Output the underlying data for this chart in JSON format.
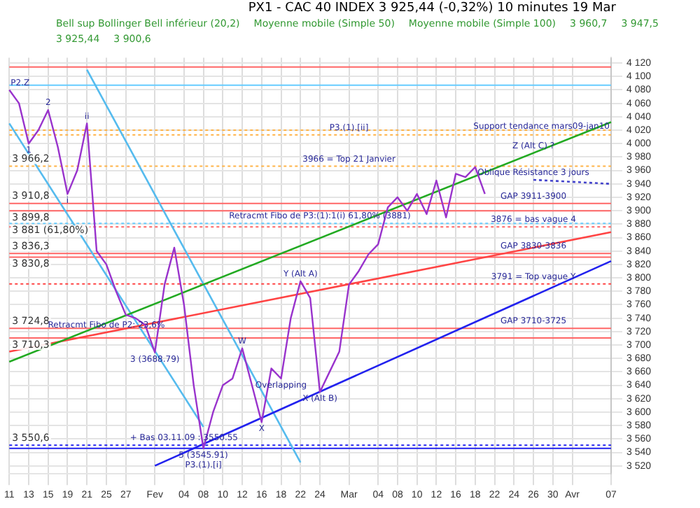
{
  "chart_data": {
    "type": "line",
    "title": "PX1 - CAC 40 INDEX  3 925,44 (-0,32%)  10 minutes  19 Mar",
    "categories": [
      "11",
      null,
      "13",
      null,
      "15",
      null,
      "19",
      null,
      "21",
      null,
      "25",
      null,
      "27",
      null,
      null,
      "Fev",
      null,
      null,
      "04",
      null,
      "08",
      null,
      "10",
      null,
      "12",
      null,
      "16",
      null,
      "18",
      null,
      "22",
      null,
      "24",
      null,
      null,
      "Mar",
      null,
      null,
      "04",
      null,
      "08",
      null,
      "10",
      null,
      "12",
      null,
      "16",
      null,
      "18",
      null,
      "22",
      null,
      "24",
      null,
      "26",
      null,
      "30",
      null,
      "Avr",
      null,
      null,
      null,
      "07"
    ],
    "series": [
      {
        "color": "#9933cc",
        "values": [
          4080,
          4060,
          4000,
          4020,
          4050,
          3995,
          3925,
          3960,
          4030,
          3840,
          3820,
          3780,
          3745,
          3740,
          3730,
          3689,
          3790,
          3845,
          3760,
          3640,
          3546,
          3600,
          3640,
          3650,
          3695,
          3640,
          3585,
          3665,
          3650,
          3740,
          3795,
          3770,
          3630,
          3660,
          3690,
          3790,
          3810,
          3835,
          3850,
          3905,
          3920,
          3900,
          3925,
          3895,
          3945,
          3890,
          3955,
          3950,
          3965,
          3925,
          null,
          null,
          null,
          null,
          null,
          null,
          null,
          null,
          null,
          null,
          null,
          null,
          null
        ]
      },
      {
        "type": "line",
        "color": "#22aa22",
        "x": [
          "11",
          "07"
        ],
        "values": [
          3675,
          4032
        ]
      },
      {
        "type": "line",
        "color": "#ff4444",
        "x": [
          "11",
          "07"
        ],
        "values": [
          3690,
          3868
        ]
      },
      {
        "type": "line",
        "color": "#2222ee",
        "x": [
          "Fev",
          "07"
        ],
        "values": [
          3520,
          3825
        ]
      },
      {
        "type": "line",
        "color": "#55bbee",
        "x": [
          "11",
          "08"
        ],
        "values": [
          4030,
          3578
        ]
      },
      {
        "type": "line",
        "color": "#55bbee",
        "x": [
          "21",
          "22"
        ],
        "values": [
          4110,
          3525
        ]
      },
      {
        "type": "line",
        "color": "#4444cc",
        "line_style": "dotted",
        "x": [
          "26",
          "07"
        ],
        "values": [
          3946,
          3940
        ]
      }
    ],
    "ylim": [
      3508,
      4128
    ],
    "yticks": [
      {
        "value": 3520,
        "label": "3 520"
      },
      {
        "value": 3540,
        "label": "3 540"
      },
      {
        "value": 3560,
        "label": "3 560"
      },
      {
        "value": 3580,
        "label": "3 580"
      },
      {
        "value": 3600,
        "label": "3 600"
      },
      {
        "value": 3620,
        "label": "3 620"
      },
      {
        "value": 3640,
        "label": "3 640"
      },
      {
        "value": 3660,
        "label": "3 660"
      },
      {
        "value": 3680,
        "label": "3 680"
      },
      {
        "value": 3700,
        "label": "3 700"
      },
      {
        "value": 3720,
        "label": "3 720"
      },
      {
        "value": 3740,
        "label": "3 740"
      },
      {
        "value": 3760,
        "label": "3 760"
      },
      {
        "value": 3780,
        "label": "3 780"
      },
      {
        "value": 3800,
        "label": "3 800"
      },
      {
        "value": 3820,
        "label": "3 820"
      },
      {
        "value": 3840,
        "label": "3 840"
      },
      {
        "value": 3860,
        "label": "3 860"
      },
      {
        "value": 3880,
        "label": "3 880"
      },
      {
        "value": 3900,
        "label": "3 900"
      },
      {
        "value": 3920,
        "label": "3 920"
      },
      {
        "value": 3940,
        "label": "3 940"
      },
      {
        "value": 3960,
        "label": "3 960"
      },
      {
        "value": 3980,
        "label": "3 980"
      },
      {
        "value": 4000,
        "label": "4 000"
      },
      {
        "value": 4020,
        "label": "4 020"
      },
      {
        "value": 4040,
        "label": "4 040"
      },
      {
        "value": 4060,
        "label": "4 060"
      },
      {
        "value": 4080,
        "label": "4 080"
      },
      {
        "value": 4100,
        "label": "4 100"
      },
      {
        "value": 4120,
        "label": "4 120"
      }
    ],
    "grid": true,
    "marker": "none",
    "ref_lines": [
      {
        "axis": "y",
        "value": 4114,
        "color": "#ff6666",
        "line_style": "solid"
      },
      {
        "axis": "y",
        "value": 4087,
        "color": "#66ccff",
        "line_style": "solid"
      },
      {
        "axis": "y",
        "value": 4020,
        "color": "#ffb347",
        "line_style": "dotted"
      },
      {
        "axis": "y",
        "value": 4013,
        "color": "#ffb347",
        "line_style": "dotted"
      },
      {
        "axis": "y",
        "value": 3966.2,
        "label": "3 966,2",
        "color": "#ffb347",
        "line_style": "dotted"
      },
      {
        "axis": "y",
        "value": 3910.8,
        "label": "3 910,8",
        "color": "#ff6666",
        "line_style": "solid"
      },
      {
        "axis": "y",
        "value": 3899.8,
        "label": "3 899,8",
        "color": "#ff6666",
        "line_style": "solid"
      },
      {
        "axis": "y",
        "value": 3881,
        "label": "3 881 (61,80%)",
        "color": "#66ccff",
        "line_style": "dotted"
      },
      {
        "axis": "y",
        "value": 3876,
        "color": "#ff6666",
        "line_style": "dotted"
      },
      {
        "axis": "y",
        "value": 3836.3,
        "label": "3 836,3",
        "color": "#ff6666",
        "line_style": "solid"
      },
      {
        "axis": "y",
        "value": 3830.8,
        "label": "3 830,8",
        "color": "#ff6666",
        "line_style": "solid"
      },
      {
        "axis": "y",
        "value": 3791,
        "color": "#ff4444",
        "line_style": "dotted"
      },
      {
        "axis": "y",
        "value": 3724.8,
        "label": "3 724,8",
        "color": "#ff6666",
        "line_style": "solid"
      },
      {
        "axis": "y",
        "value": 3710.3,
        "label": "3 710,3",
        "color": "#ff6666",
        "line_style": "solid"
      },
      {
        "axis": "y",
        "value": 3550.6,
        "label": "3 550,6",
        "color": "#2222ee",
        "line_style": "dotted"
      },
      {
        "axis": "y",
        "value": 3545.9,
        "color": "#2222ee",
        "line_style": "solid"
      }
    ],
    "annotations": [
      "Bell sup Bollinger Bell inférieur (20,2)",
      "Moyenne mobile (Simple 50)",
      "Moyenne mobile (Simple 100)",
      {
        "text": "P2.Z",
        "x": "11",
        "y": 4080
      },
      {
        "text": "1",
        "x": "13",
        "y": 4000
      },
      {
        "text": "2",
        "x": "15",
        "y": 4050
      },
      {
        "text": "i",
        "x": "19",
        "y": 3925
      },
      {
        "text": "ii",
        "x": "21",
        "y": 4030
      },
      {
        "text": "Retracmt Fibo de P2: 23,6%",
        "x": "25",
        "y": 3719
      },
      {
        "text": "3 (3688.79)",
        "x": "Fev",
        "y": 3689
      },
      {
        "text": "+ Bas 03.11.09 : 3550.55",
        "x": "04",
        "y": 3550.6
      },
      {
        "text": "5 (3545.91)",
        "x": "08",
        "y": 3546
      },
      {
        "text": "P3.(1).[i]",
        "x": "08",
        "y": 3546
      },
      {
        "text": "W",
        "x": "12",
        "y": 3695
      },
      {
        "text": "X",
        "x": "16",
        "y": 3585
      },
      {
        "text": "Overlapping",
        "x": "18",
        "y": 3650
      },
      {
        "text": "Y (Alt A)",
        "x": "22",
        "y": 3795
      },
      {
        "text": "X (Alt B)",
        "x": "24",
        "y": 3630
      },
      {
        "text": "Retracmt Fibo de P3:(1):1(i) 61,80% (3881)",
        "x": "24",
        "y": 3881
      },
      {
        "text": "3966 = Top 21 Janvier",
        "x": "Mar",
        "y": 3966.2
      },
      {
        "text": "Z (Alt C) ?",
        "x": "26",
        "y": 3986
      },
      {
        "text": "P3.(1).[ii]",
        "x": "Mar",
        "y": 4013
      },
      {
        "text": "Support tendance mars09-jan10",
        "x": "Avr",
        "y": 4014.7
      },
      {
        "text": "Oblique Résistance 3 jours",
        "x": "26",
        "y": 3946
      },
      {
        "text": "GAP 3911-3900",
        "x": "26",
        "y": 3910.8
      },
      {
        "text": "3876 = bas vague 4",
        "x": "26",
        "y": 3876
      },
      {
        "text": "GAP 3830-3836",
        "x": "26",
        "y": 3836.3
      },
      {
        "text": "3791 = Top vague Y",
        "x": "26",
        "y": 3791
      },
      {
        "text": "GAP 3710-3725",
        "x": "26",
        "y": 3724.8
      },
      "3 960,7",
      "3 947,5",
      "3 925,44",
      "3 900,6"
    ]
  }
}
